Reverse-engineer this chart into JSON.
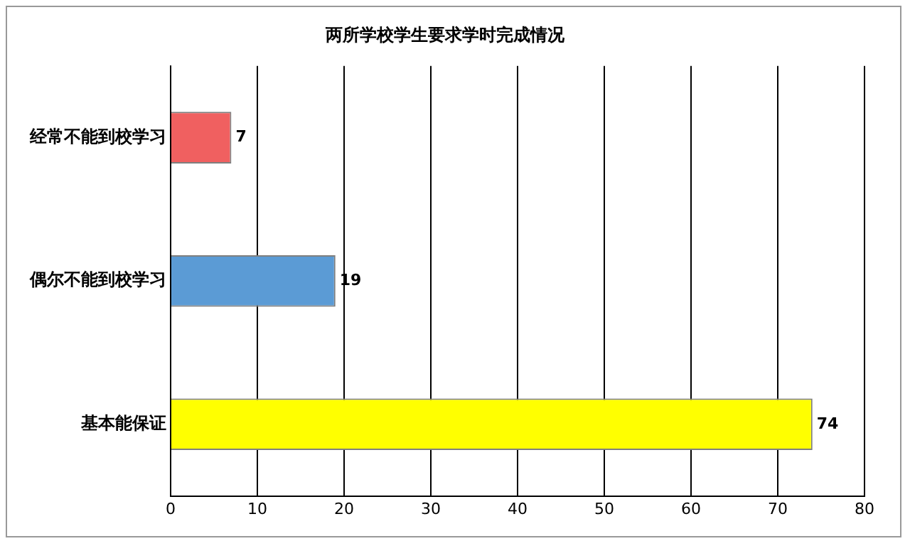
{
  "chart_data": {
    "type": "bar",
    "orientation": "horizontal",
    "title": "两所学校学生要求学时完成情况",
    "categories": [
      "经常不能到校学习",
      "偶尔不能到校学习",
      "基本能保证"
    ],
    "values": [
      7,
      19,
      74
    ],
    "colors": [
      "#f06060",
      "#5b9bd5",
      "#ffff00"
    ],
    "xlim": [
      0,
      80
    ],
    "xticks": [
      0,
      10,
      20,
      30,
      40,
      50,
      60,
      70,
      80
    ],
    "grid": "x",
    "legend": false,
    "data_labels": true
  }
}
